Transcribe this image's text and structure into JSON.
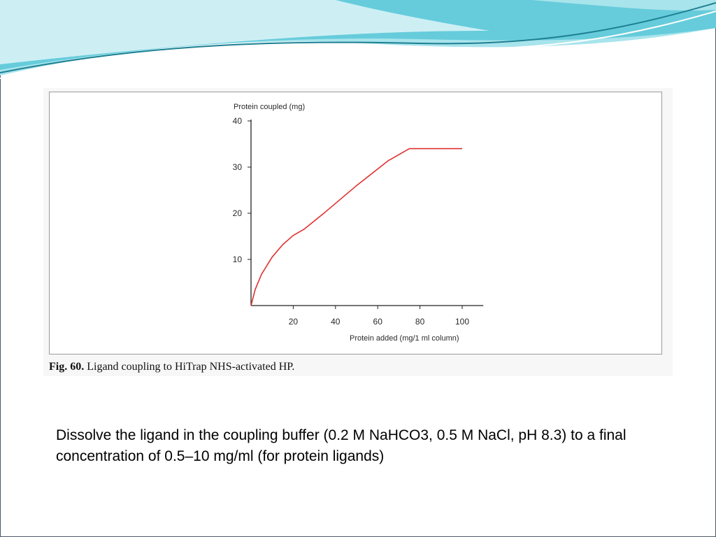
{
  "slide": {
    "accent_colors": [
      "#5bc8d8",
      "#a8e4ec",
      "#1e7f92"
    ],
    "figure_caption": {
      "number": "Fig. 60.",
      "text": "Ligand coupling to HiTrap NHS-activated HP."
    },
    "body_text": "Dissolve the ligand in the coupling buffer (0.2 M NaHCO3, 0.5 M NaCl, pH 8.3) to a final concentration of 0.5–10 mg/ml (for protein ligands)"
  },
  "chart_data": {
    "type": "line",
    "title": "",
    "xlabel": "Protein added (mg/1 ml column)",
    "ylabel": "Protein coupled (mg)",
    "xlim": [
      0,
      110
    ],
    "ylim": [
      0,
      40
    ],
    "xticks": [
      20,
      40,
      60,
      80,
      100
    ],
    "yticks": [
      10,
      20,
      30,
      40
    ],
    "grid": false,
    "line_color": "#e03030",
    "series": [
      {
        "x": [
          0,
          2,
          5,
          10,
          15,
          20,
          25,
          35,
          50,
          65,
          75,
          85,
          100
        ],
        "y": [
          0,
          3.5,
          6.8,
          10.5,
          13.2,
          15.2,
          16.5,
          20.2,
          26.0,
          31.4,
          34.0,
          34.0,
          34.0
        ]
      }
    ]
  }
}
